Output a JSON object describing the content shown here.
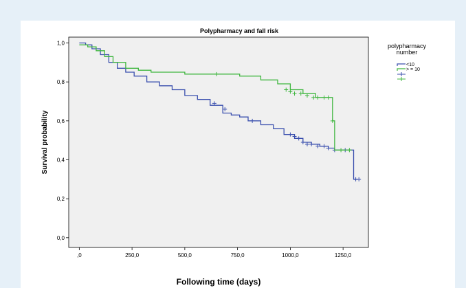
{
  "chart_data": {
    "type": "line",
    "title": "Polypharmacy and fall risk",
    "xlabel": "Following time (days)",
    "ylabel": "Survival probability",
    "xlim": [
      -50,
      1370
    ],
    "ylim": [
      -0.05,
      1.03
    ],
    "x_ticks": [
      0,
      250,
      500,
      750,
      1000,
      1250
    ],
    "x_tick_labels": [
      ",0",
      "250,0",
      "500,0",
      "750,0",
      "1000,0",
      "1250,0"
    ],
    "y_ticks": [
      0,
      0.2,
      0.4,
      0.6,
      0.8,
      1.0
    ],
    "y_tick_labels": [
      "0,0",
      "0,2",
      "0,4",
      "0,6",
      "0,8",
      "1,0"
    ],
    "grid": false,
    "legend": {
      "title": "polypharmacy number",
      "title_lines": [
        "polypharmacy",
        "number"
      ],
      "placement": "right",
      "entries": [
        {
          "label": "<10",
          "kind": "line",
          "color": "#3a4fae"
        },
        {
          "label": "> = 10",
          "kind": "line",
          "color": "#3fb63f"
        },
        {
          "label": "",
          "kind": "censor",
          "color": "#3a4fae"
        },
        {
          "label": "",
          "kind": "censor",
          "color": "#3fb63f"
        }
      ]
    },
    "series": [
      {
        "name": "<10",
        "color": "#3a4fae",
        "x": [
          0,
          30,
          60,
          100,
          140,
          180,
          220,
          260,
          320,
          380,
          440,
          500,
          560,
          620,
          680,
          720,
          760,
          800,
          860,
          920,
          970,
          1020,
          1060,
          1100,
          1140,
          1180,
          1210,
          1260,
          1300,
          1320
        ],
        "y": [
          1.0,
          0.99,
          0.97,
          0.94,
          0.9,
          0.87,
          0.85,
          0.83,
          0.8,
          0.78,
          0.76,
          0.73,
          0.71,
          0.68,
          0.64,
          0.63,
          0.62,
          0.6,
          0.58,
          0.56,
          0.53,
          0.51,
          0.49,
          0.48,
          0.47,
          0.46,
          0.45,
          0.45,
          0.3,
          0.3
        ],
        "censor_x": [
          640,
          690,
          820,
          1000,
          1020,
          1040,
          1060,
          1080,
          1100,
          1130,
          1160,
          1180,
          1210,
          1260,
          1310,
          1325
        ],
        "censor_y": [
          0.69,
          0.66,
          0.6,
          0.53,
          0.52,
          0.51,
          0.49,
          0.48,
          0.48,
          0.47,
          0.47,
          0.46,
          0.45,
          0.45,
          0.3,
          0.3
        ]
      },
      {
        "name": "> = 10",
        "color": "#3fb63f",
        "x": [
          0,
          40,
          80,
          120,
          160,
          220,
          280,
          340,
          420,
          500,
          600,
          700,
          760,
          860,
          940,
          1000,
          1060,
          1120,
          1180,
          1200,
          1210,
          1290
        ],
        "y": [
          0.99,
          0.98,
          0.96,
          0.93,
          0.9,
          0.87,
          0.86,
          0.85,
          0.85,
          0.84,
          0.84,
          0.84,
          0.83,
          0.81,
          0.79,
          0.76,
          0.74,
          0.72,
          0.72,
          0.6,
          0.45,
          0.45
        ],
        "censor_x": [
          650,
          980,
          1000,
          1020,
          1050,
          1080,
          1110,
          1130,
          1160,
          1180,
          1200,
          1240,
          1280
        ],
        "censor_y": [
          0.84,
          0.76,
          0.75,
          0.74,
          0.74,
          0.73,
          0.72,
          0.72,
          0.72,
          0.72,
          0.6,
          0.45,
          0.45
        ]
      }
    ]
  }
}
